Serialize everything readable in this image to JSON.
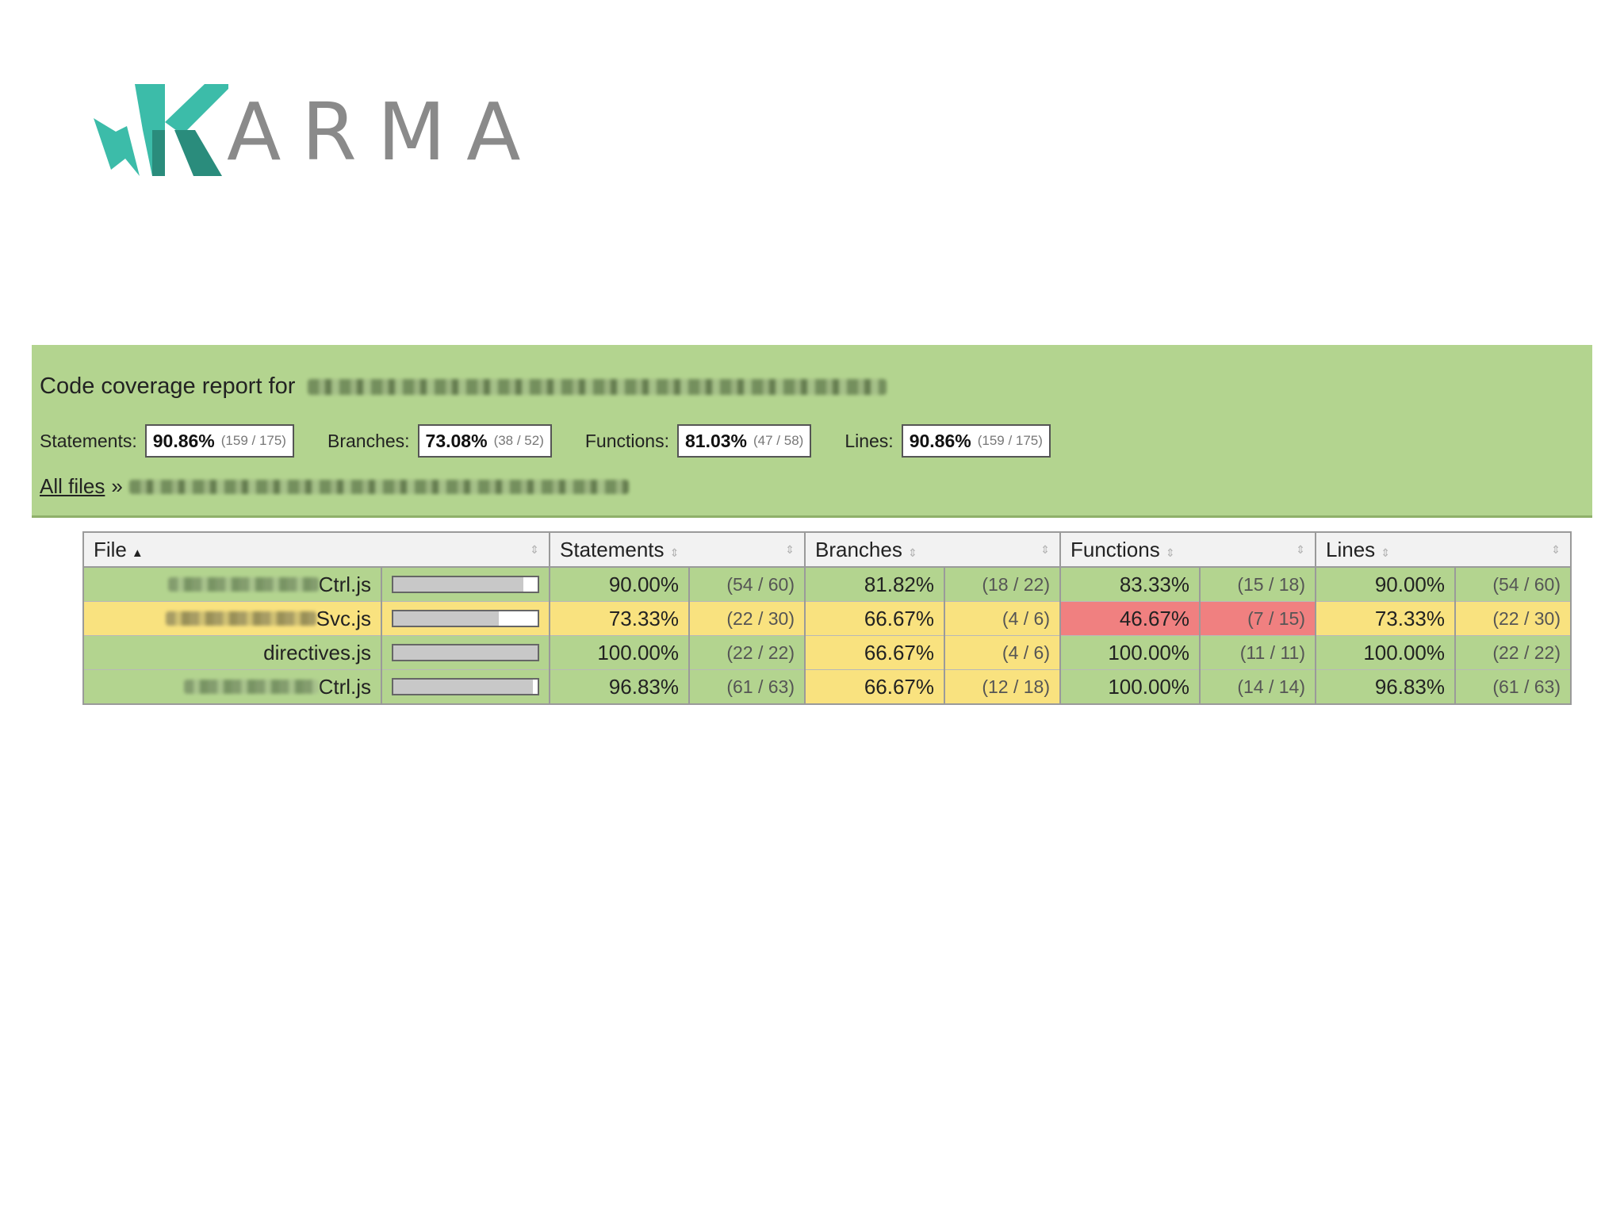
{
  "logo": {
    "text": "ARMA",
    "brand_color": "#3cbca9",
    "brand_dark": "#2a8c7c"
  },
  "report": {
    "title_prefix": "Code coverage report for",
    "summary": [
      {
        "label": "Statements:",
        "pct": "90.86%",
        "frac": "(159 / 175)"
      },
      {
        "label": "Branches:",
        "pct": "73.08%",
        "frac": "(38 / 52)"
      },
      {
        "label": "Functions:",
        "pct": "81.03%",
        "frac": "(47 / 58)"
      },
      {
        "label": "Lines:",
        "pct": "90.86%",
        "frac": "(159 / 175)"
      }
    ],
    "breadcrumb": {
      "all_files": "All files",
      "separator": "»"
    }
  },
  "table": {
    "headers": {
      "file": "File",
      "statements": "Statements",
      "branches": "Branches",
      "functions": "Functions",
      "lines": "Lines"
    },
    "rows": [
      {
        "file": "Ctrl.js",
        "bar": 0.9,
        "statements": {
          "pct": "90.00%",
          "frac": "(54 / 60)",
          "level": "hi"
        },
        "branches": {
          "pct": "81.82%",
          "frac": "(18 / 22)",
          "level": "hi"
        },
        "functions": {
          "pct": "83.33%",
          "frac": "(15 / 18)",
          "level": "hi"
        },
        "lines": {
          "pct": "90.00%",
          "frac": "(54 / 60)",
          "level": "hi"
        }
      },
      {
        "file": "Svc.js",
        "bar": 0.7333,
        "statements": {
          "pct": "73.33%",
          "frac": "(22 / 30)",
          "level": "med"
        },
        "branches": {
          "pct": "66.67%",
          "frac": "(4 / 6)",
          "level": "med"
        },
        "functions": {
          "pct": "46.67%",
          "frac": "(7 / 15)",
          "level": "lo"
        },
        "lines": {
          "pct": "73.33%",
          "frac": "(22 / 30)",
          "level": "med"
        }
      },
      {
        "file": "directives.js",
        "bar": 1.0,
        "statements": {
          "pct": "100.00%",
          "frac": "(22 / 22)",
          "level": "hi"
        },
        "branches": {
          "pct": "66.67%",
          "frac": "(4 / 6)",
          "level": "med"
        },
        "functions": {
          "pct": "100.00%",
          "frac": "(11 / 11)",
          "level": "hi"
        },
        "lines": {
          "pct": "100.00%",
          "frac": "(22 / 22)",
          "level": "hi"
        }
      },
      {
        "file": "Ctrl.js",
        "bar": 0.9683,
        "statements": {
          "pct": "96.83%",
          "frac": "(61 / 63)",
          "level": "hi"
        },
        "branches": {
          "pct": "66.67%",
          "frac": "(12 / 18)",
          "level": "med"
        },
        "functions": {
          "pct": "100.00%",
          "frac": "(14 / 14)",
          "level": "hi"
        },
        "lines": {
          "pct": "96.83%",
          "frac": "(61 / 63)",
          "level": "hi"
        }
      }
    ]
  }
}
